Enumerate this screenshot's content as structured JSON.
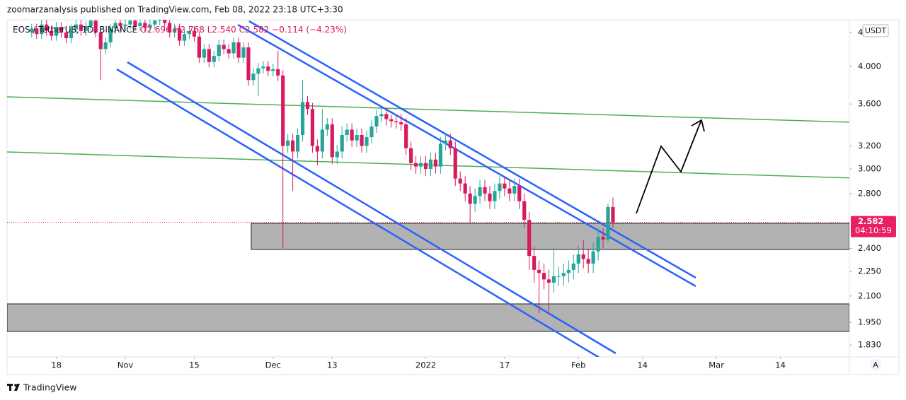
{
  "chart_data": {
    "type": "candlestick",
    "title": "zoomarzanalysis published on TradingView.com, Feb 08, 2022 23:18 UTC+3:30",
    "legend": [
      "EOS / TetherUS, 1D, BINANCE",
      "O2.696",
      "H2.768",
      "L2.540",
      "C2.582",
      "−0.114 (−4.23%)"
    ],
    "x": [
      "2021-10-13",
      "2021-10-14",
      "2021-10-15",
      "2021-10-16",
      "2021-10-17",
      "2021-10-18",
      "2021-10-19",
      "2021-10-20",
      "2021-10-21",
      "2021-10-22",
      "2021-10-23",
      "2021-10-24",
      "2021-10-25",
      "2021-10-26",
      "2021-10-27",
      "2021-10-28",
      "2021-10-29",
      "2021-10-30",
      "2021-10-31",
      "2021-11-01",
      "2021-11-02",
      "2021-11-03",
      "2021-11-04",
      "2021-11-05",
      "2021-11-06",
      "2021-11-07",
      "2021-11-08",
      "2021-11-09",
      "2021-11-10",
      "2021-11-11",
      "2021-11-12",
      "2021-11-13",
      "2021-11-14",
      "2021-11-15",
      "2021-11-16",
      "2021-11-17",
      "2021-11-18",
      "2021-11-19",
      "2021-11-20",
      "2021-11-21",
      "2021-11-22",
      "2021-11-23",
      "2021-11-24",
      "2021-11-25",
      "2021-11-26",
      "2021-11-27",
      "2021-11-28",
      "2021-11-29",
      "2021-11-30",
      "2021-12-01",
      "2021-12-02",
      "2021-12-03",
      "2021-12-04",
      "2021-12-05",
      "2021-12-06",
      "2021-12-07",
      "2021-12-08",
      "2021-12-09",
      "2021-12-10",
      "2021-12-11",
      "2021-12-12",
      "2021-12-13",
      "2021-12-14",
      "2021-12-15",
      "2021-12-16",
      "2021-12-17",
      "2021-12-18",
      "2021-12-19",
      "2021-12-20",
      "2021-12-21",
      "2021-12-22",
      "2021-12-23",
      "2021-12-24",
      "2021-12-25",
      "2021-12-26",
      "2021-12-27",
      "2021-12-28",
      "2021-12-29",
      "2021-12-30",
      "2021-12-31",
      "2022-01-01",
      "2022-01-02",
      "2022-01-03",
      "2022-01-04",
      "2022-01-05",
      "2022-01-06",
      "2022-01-07",
      "2022-01-08",
      "2022-01-09",
      "2022-01-10",
      "2022-01-11",
      "2022-01-12",
      "2022-01-13",
      "2022-01-14",
      "2022-01-15",
      "2022-01-16",
      "2022-01-17",
      "2022-01-18",
      "2022-01-19",
      "2022-01-20",
      "2022-01-21",
      "2022-01-22",
      "2022-01-23",
      "2022-01-24",
      "2022-01-25",
      "2022-01-26",
      "2022-01-27",
      "2022-01-28",
      "2022-01-29",
      "2022-01-30",
      "2022-01-31",
      "2022-02-01",
      "2022-02-02",
      "2022-02-03",
      "2022-02-04",
      "2022-02-05",
      "2022-02-06",
      "2022-02-07",
      "2022-02-08"
    ],
    "open": [
      4.4,
      4.45,
      4.38,
      4.5,
      4.42,
      4.36,
      4.47,
      4.4,
      4.33,
      4.44,
      4.5,
      4.42,
      4.48,
      4.55,
      4.4,
      4.2,
      4.28,
      4.45,
      4.52,
      4.48,
      4.5,
      4.55,
      4.48,
      4.52,
      4.46,
      4.5,
      4.55,
      4.6,
      4.52,
      4.4,
      4.45,
      4.3,
      4.38,
      4.42,
      4.35,
      4.1,
      4.2,
      4.05,
      4.12,
      4.25,
      4.2,
      4.15,
      4.28,
      4.1,
      4.22,
      3.85,
      3.92,
      3.98,
      4.0,
      3.95,
      3.97,
      3.9,
      3.2,
      3.25,
      3.15,
      3.3,
      3.62,
      3.55,
      3.2,
      3.15,
      3.35,
      3.4,
      3.1,
      3.15,
      3.3,
      3.35,
      3.25,
      3.3,
      3.2,
      3.28,
      3.38,
      3.48,
      3.5,
      3.45,
      3.43,
      3.42,
      3.4,
      3.18,
      3.05,
      3.02,
      3.05,
      3.0,
      3.08,
      3.02,
      3.22,
      3.25,
      3.18,
      2.92,
      2.88,
      2.8,
      2.72,
      2.78,
      2.85,
      2.8,
      2.74,
      2.82,
      2.88,
      2.84,
      2.8,
      2.86,
      2.74,
      2.6,
      2.35,
      2.26,
      2.24,
      2.2,
      2.18,
      2.22,
      2.22,
      2.24,
      2.26,
      2.3,
      2.36,
      2.33,
      2.3,
      2.38,
      2.48,
      2.46,
      2.696
    ],
    "high": [
      4.51,
      4.51,
      4.56,
      4.56,
      4.48,
      4.53,
      4.53,
      4.46,
      4.5,
      4.56,
      4.56,
      4.54,
      4.61,
      4.61,
      4.46,
      4.34,
      4.51,
      4.58,
      4.58,
      4.56,
      4.61,
      4.61,
      4.58,
      4.58,
      4.56,
      4.61,
      4.66,
      4.66,
      4.58,
      4.51,
      4.51,
      4.44,
      4.48,
      4.48,
      4.41,
      4.26,
      4.26,
      4.18,
      4.31,
      4.31,
      4.26,
      4.34,
      4.34,
      4.28,
      4.28,
      3.98,
      4.04,
      4.06,
      4.06,
      4.03,
      4.18,
      3.96,
      3.31,
      3.31,
      3.36,
      3.85,
      3.68,
      3.61,
      3.26,
      3.55,
      3.46,
      3.46,
      3.21,
      3.38,
      3.41,
      3.41,
      3.36,
      3.36,
      3.34,
      3.44,
      3.54,
      3.56,
      3.56,
      3.49,
      3.49,
      3.5,
      3.46,
      3.24,
      3.11,
      3.11,
      3.11,
      3.14,
      3.14,
      3.28,
      3.31,
      3.31,
      3.24,
      2.98,
      2.94,
      2.86,
      2.84,
      2.91,
      2.91,
      2.86,
      2.88,
      2.94,
      2.94,
      2.9,
      2.92,
      2.92,
      2.8,
      2.66,
      2.41,
      2.32,
      2.3,
      2.26,
      2.4,
      2.28,
      2.3,
      2.32,
      2.36,
      2.42,
      2.46,
      2.39,
      2.44,
      2.54,
      2.54,
      2.72,
      2.768
    ],
    "low": [
      4.34,
      4.32,
      4.32,
      4.36,
      4.3,
      4.3,
      4.34,
      4.27,
      4.27,
      4.38,
      4.36,
      4.36,
      4.42,
      4.34,
      3.85,
      4.14,
      4.22,
      4.39,
      4.42,
      4.42,
      4.44,
      4.42,
      4.42,
      4.4,
      4.4,
      4.44,
      4.49,
      4.46,
      4.34,
      4.34,
      4.24,
      4.24,
      4.32,
      4.29,
      4.04,
      4.04,
      3.99,
      3.99,
      4.06,
      4.14,
      4.09,
      4.09,
      4.04,
      4.04,
      3.79,
      3.79,
      3.68,
      3.92,
      3.89,
      3.89,
      3.84,
      2.4,
      3.14,
      2.82,
      3.09,
      3.24,
      3.49,
      3.14,
      3.03,
      3.09,
      3.29,
      3.04,
      3.04,
      3.09,
      3.24,
      3.19,
      3.19,
      3.14,
      3.14,
      3.22,
      3.32,
      3.42,
      3.39,
      3.37,
      3.36,
      3.34,
      3.12,
      2.99,
      2.96,
      2.96,
      2.94,
      2.94,
      2.96,
      2.96,
      3.16,
      3.12,
      2.86,
      2.82,
      2.74,
      2.58,
      2.66,
      2.72,
      2.74,
      2.68,
      2.68,
      2.76,
      2.78,
      2.74,
      2.74,
      2.68,
      2.54,
      2.26,
      2.18,
      2.0,
      2.14,
      2.0,
      2.12,
      2.16,
      2.16,
      2.18,
      2.2,
      2.24,
      2.27,
      2.24,
      2.24,
      2.32,
      2.4,
      2.44,
      2.54
    ],
    "close": [
      4.45,
      4.38,
      4.5,
      4.42,
      4.36,
      4.47,
      4.4,
      4.33,
      4.44,
      4.5,
      4.42,
      4.48,
      4.55,
      4.4,
      4.2,
      4.28,
      4.45,
      4.52,
      4.48,
      4.5,
      4.55,
      4.48,
      4.52,
      4.46,
      4.5,
      4.55,
      4.6,
      4.52,
      4.4,
      4.45,
      4.3,
      4.38,
      4.42,
      4.35,
      4.1,
      4.2,
      4.05,
      4.12,
      4.25,
      4.2,
      4.15,
      4.28,
      4.1,
      4.22,
      3.85,
      3.92,
      3.98,
      4.0,
      3.95,
      3.97,
      3.9,
      3.2,
      3.25,
      3.15,
      3.3,
      3.62,
      3.55,
      3.2,
      3.15,
      3.35,
      3.4,
      3.1,
      3.15,
      3.3,
      3.35,
      3.25,
      3.3,
      3.2,
      3.28,
      3.38,
      3.48,
      3.5,
      3.45,
      3.43,
      3.42,
      3.4,
      3.18,
      3.05,
      3.02,
      3.05,
      3.0,
      3.08,
      3.02,
      3.22,
      3.25,
      3.18,
      2.92,
      2.88,
      2.8,
      2.72,
      2.78,
      2.85,
      2.8,
      2.74,
      2.82,
      2.88,
      2.84,
      2.8,
      2.86,
      2.74,
      2.6,
      2.35,
      2.26,
      2.24,
      2.2,
      2.18,
      2.22,
      2.22,
      2.24,
      2.26,
      2.3,
      2.36,
      2.33,
      2.3,
      2.38,
      2.48,
      2.46,
      2.696,
      2.582
    ],
    "colors": {
      "up": "#26a69a",
      "down": "#d81b60"
    },
    "xlim": [
      "2021-10-08",
      "2022-03-28"
    ],
    "xticks": [
      {
        "value": "2021-10-18",
        "label": "18"
      },
      {
        "value": "2021-11-01",
        "label": "Nov"
      },
      {
        "value": "2021-11-15",
        "label": "15"
      },
      {
        "value": "2021-12-01",
        "label": "Dec"
      },
      {
        "value": "2021-12-13",
        "label": "13"
      },
      {
        "value": "2022-01-01",
        "label": "2022"
      },
      {
        "value": "2022-01-17",
        "label": "17"
      },
      {
        "value": "2022-02-01",
        "label": "Feb"
      },
      {
        "value": "2022-02-14",
        "label": "14"
      },
      {
        "value": "2022-03-01",
        "label": "Mar"
      },
      {
        "value": "2022-03-14",
        "label": "14"
      }
    ],
    "ylim": [
      1.77,
      4.56
    ],
    "yscale": "log",
    "yticks": [
      {
        "value": 4.4,
        "label": "4.400"
      },
      {
        "value": 4,
        "label": "4.000"
      },
      {
        "value": 3.6,
        "label": "3.600"
      },
      {
        "value": 3.2,
        "label": "3.200"
      },
      {
        "value": 3,
        "label": "3.000"
      },
      {
        "value": 2.8,
        "label": "2.800"
      },
      {
        "value": 2.4,
        "label": "2.400"
      },
      {
        "value": 2.25,
        "label": "2.250"
      },
      {
        "value": 2.1,
        "label": "2.100"
      },
      {
        "value": 1.95,
        "label": "1.950"
      },
      {
        "value": 1.83,
        "label": "1.830"
      }
    ],
    "grid": false,
    "last_price": 2.582,
    "countdown": "04:10:59",
    "currency": "USDT",
    "scale_button": "A",
    "footer": "TradingView"
  }
}
